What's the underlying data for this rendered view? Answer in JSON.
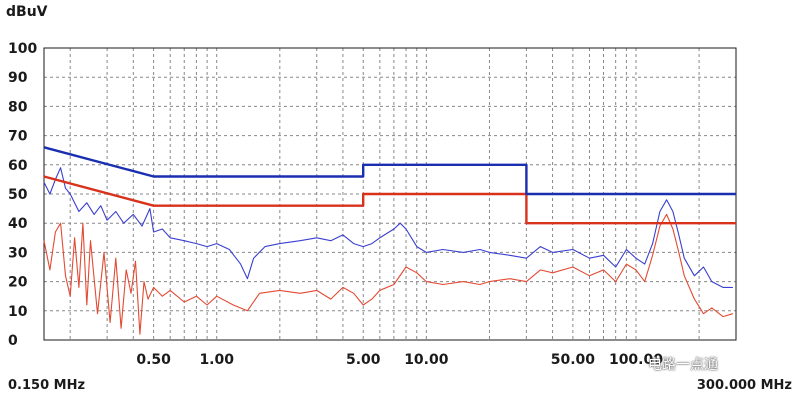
{
  "chart_data": {
    "type": "line",
    "y_unit": "dBuV",
    "x_scale": "log",
    "xlim": [
      0.15,
      300
    ],
    "ylim": [
      0,
      100
    ],
    "y_ticks": [
      0,
      10,
      20,
      30,
      40,
      50,
      60,
      70,
      80,
      90,
      100
    ],
    "x_tick_labels": [
      {
        "value": 0.5,
        "label": "0.50"
      },
      {
        "value": 1,
        "label": "1.00"
      },
      {
        "value": 5,
        "label": "5.00"
      },
      {
        "value": 10,
        "label": "10.00"
      },
      {
        "value": 50,
        "label": "50.00"
      },
      {
        "value": 100,
        "label": "100.00"
      }
    ],
    "x_min_label": "0.150 MHz",
    "x_max_label": "300.000 MHz",
    "grid": true,
    "series": [
      {
        "role": "limit-upper",
        "color": "#1a2fb0",
        "points": [
          [
            0.15,
            66
          ],
          [
            0.5,
            56
          ],
          [
            5,
            56
          ],
          [
            5,
            60
          ],
          [
            30,
            60
          ],
          [
            30,
            50
          ],
          [
            300,
            50
          ]
        ]
      },
      {
        "role": "limit-lower",
        "color": "#d8321c",
        "points": [
          [
            0.15,
            56
          ],
          [
            0.5,
            46
          ],
          [
            5,
            46
          ],
          [
            5,
            50
          ],
          [
            30,
            50
          ],
          [
            30,
            40
          ],
          [
            300,
            40
          ]
        ]
      },
      {
        "role": "measurement-peak",
        "color": "#3a3fd0",
        "points": [
          [
            0.15,
            54
          ],
          [
            0.16,
            50
          ],
          [
            0.17,
            55
          ],
          [
            0.18,
            59
          ],
          [
            0.19,
            52
          ],
          [
            0.2,
            50
          ],
          [
            0.22,
            44
          ],
          [
            0.24,
            47
          ],
          [
            0.26,
            43
          ],
          [
            0.28,
            46
          ],
          [
            0.3,
            41
          ],
          [
            0.33,
            44
          ],
          [
            0.36,
            40
          ],
          [
            0.4,
            43
          ],
          [
            0.44,
            39
          ],
          [
            0.48,
            45
          ],
          [
            0.5,
            37
          ],
          [
            0.55,
            38
          ],
          [
            0.6,
            35
          ],
          [
            0.7,
            34
          ],
          [
            0.8,
            33
          ],
          [
            0.9,
            32
          ],
          [
            1.0,
            33
          ],
          [
            1.15,
            31
          ],
          [
            1.3,
            26
          ],
          [
            1.4,
            21
          ],
          [
            1.5,
            28
          ],
          [
            1.7,
            32
          ],
          [
            2.0,
            33
          ],
          [
            2.5,
            34
          ],
          [
            3.0,
            35
          ],
          [
            3.5,
            34
          ],
          [
            4.0,
            36
          ],
          [
            4.5,
            33
          ],
          [
            5.0,
            32
          ],
          [
            5.5,
            33
          ],
          [
            6.0,
            35
          ],
          [
            7.0,
            38
          ],
          [
            7.5,
            40
          ],
          [
            8.0,
            38
          ],
          [
            9.0,
            32
          ],
          [
            10,
            30
          ],
          [
            12,
            31
          ],
          [
            15,
            30
          ],
          [
            18,
            31
          ],
          [
            20,
            30
          ],
          [
            25,
            29
          ],
          [
            30,
            28
          ],
          [
            35,
            32
          ],
          [
            40,
            30
          ],
          [
            50,
            31
          ],
          [
            60,
            28
          ],
          [
            70,
            29
          ],
          [
            80,
            25
          ],
          [
            90,
            31
          ],
          [
            100,
            28
          ],
          [
            110,
            26
          ],
          [
            120,
            33
          ],
          [
            130,
            44
          ],
          [
            140,
            48
          ],
          [
            150,
            44
          ],
          [
            160,
            36
          ],
          [
            170,
            28
          ],
          [
            190,
            22
          ],
          [
            210,
            25
          ],
          [
            230,
            20
          ],
          [
            260,
            18
          ],
          [
            290,
            18
          ]
        ]
      },
      {
        "role": "measurement-average",
        "color": "#e24a33",
        "points": [
          [
            0.15,
            34
          ],
          [
            0.16,
            24
          ],
          [
            0.17,
            37
          ],
          [
            0.18,
            40
          ],
          [
            0.19,
            22
          ],
          [
            0.2,
            15
          ],
          [
            0.21,
            35
          ],
          [
            0.22,
            18
          ],
          [
            0.23,
            40
          ],
          [
            0.24,
            12
          ],
          [
            0.25,
            34
          ],
          [
            0.27,
            9
          ],
          [
            0.29,
            30
          ],
          [
            0.31,
            6
          ],
          [
            0.33,
            28
          ],
          [
            0.35,
            4
          ],
          [
            0.37,
            24
          ],
          [
            0.39,
            16
          ],
          [
            0.41,
            27
          ],
          [
            0.43,
            2
          ],
          [
            0.45,
            20
          ],
          [
            0.47,
            14
          ],
          [
            0.5,
            18
          ],
          [
            0.55,
            15
          ],
          [
            0.6,
            17
          ],
          [
            0.7,
            13
          ],
          [
            0.8,
            15
          ],
          [
            0.9,
            12
          ],
          [
            1.0,
            15
          ],
          [
            1.2,
            12
          ],
          [
            1.4,
            10
          ],
          [
            1.6,
            16
          ],
          [
            2.0,
            17
          ],
          [
            2.5,
            16
          ],
          [
            3.0,
            17
          ],
          [
            3.5,
            14
          ],
          [
            4.0,
            18
          ],
          [
            4.5,
            16
          ],
          [
            5.0,
            12
          ],
          [
            5.5,
            14
          ],
          [
            6.0,
            17
          ],
          [
            7.0,
            19
          ],
          [
            8.0,
            25
          ],
          [
            9.0,
            23
          ],
          [
            10,
            20
          ],
          [
            12,
            19
          ],
          [
            15,
            20
          ],
          [
            18,
            19
          ],
          [
            20,
            20
          ],
          [
            25,
            21
          ],
          [
            30,
            20
          ],
          [
            35,
            24
          ],
          [
            40,
            23
          ],
          [
            50,
            25
          ],
          [
            60,
            22
          ],
          [
            70,
            24
          ],
          [
            80,
            20
          ],
          [
            90,
            26
          ],
          [
            100,
            24
          ],
          [
            110,
            20
          ],
          [
            120,
            29
          ],
          [
            130,
            39
          ],
          [
            140,
            43
          ],
          [
            150,
            38
          ],
          [
            160,
            30
          ],
          [
            170,
            22
          ],
          [
            190,
            14
          ],
          [
            210,
            9
          ],
          [
            230,
            11
          ],
          [
            260,
            8
          ],
          [
            290,
            9
          ]
        ]
      }
    ]
  },
  "watermark_text": "电路一点通"
}
